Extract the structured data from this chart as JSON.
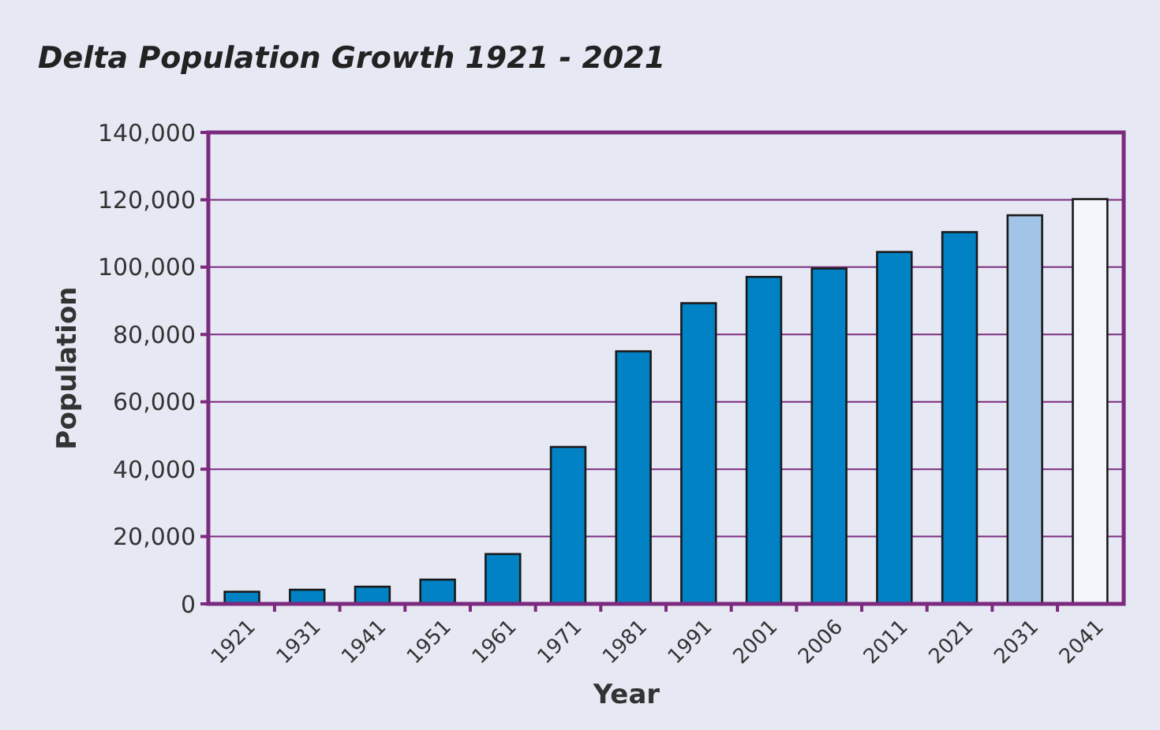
{
  "chart_data": {
    "type": "bar",
    "title": "Delta Population Growth 1921 - 2021",
    "xlabel": "Year",
    "ylabel": "Population",
    "categories": [
      "1921",
      "1931",
      "1941",
      "1951",
      "1961",
      "1971",
      "1981",
      "1991",
      "2001",
      "2006",
      "2011",
      "2021",
      "2031",
      "2041"
    ],
    "values": [
      3600,
      4200,
      5100,
      7200,
      14800,
      46600,
      75000,
      89300,
      97100,
      99600,
      104500,
      110400,
      115400,
      120200
    ],
    "colors": [
      "#0082c4",
      "#0082c4",
      "#0082c4",
      "#0082c4",
      "#0082c4",
      "#0082c4",
      "#0082c4",
      "#0082c4",
      "#0082c4",
      "#0082c4",
      "#0082c4",
      "#0082c4",
      "#a2c4e6",
      "#f3f6fb"
    ],
    "ylim": [
      0,
      140000
    ],
    "yticks": [
      {
        "value": 0,
        "label": "0"
      },
      {
        "value": 20000,
        "label": "20,000"
      },
      {
        "value": 40000,
        "label": "40,000"
      },
      {
        "value": 60000,
        "label": "60,000"
      },
      {
        "value": 80000,
        "label": "80,000"
      },
      {
        "value": 100000,
        "label": "100,000"
      },
      {
        "value": 120000,
        "label": "120,000"
      },
      {
        "value": 140000,
        "label": "140,000"
      }
    ],
    "grid": "y"
  }
}
